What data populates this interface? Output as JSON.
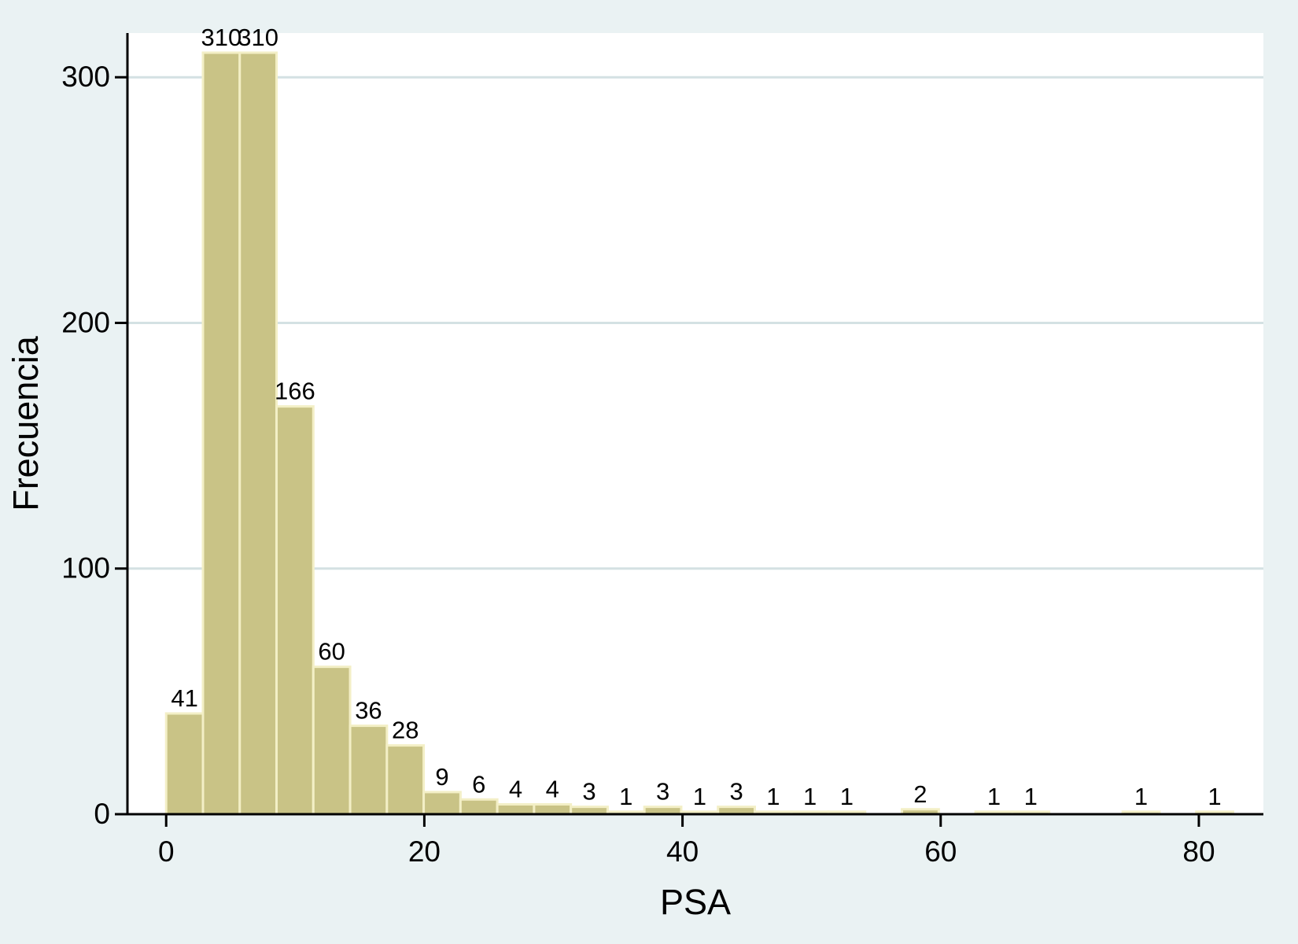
{
  "chart_data": {
    "type": "bar",
    "title": "",
    "xlabel": "PSA",
    "ylabel": "Frecuencia",
    "xlim": [
      -3,
      85
    ],
    "ylim": [
      0,
      318
    ],
    "xticks": [
      0,
      20,
      40,
      60,
      80
    ],
    "yticks": [
      0,
      100,
      200,
      300
    ],
    "grid": true,
    "bin_width": 2.85,
    "bins": [
      {
        "start": 0.0,
        "value": 41
      },
      {
        "start": 2.85,
        "value": 310
      },
      {
        "start": 5.7,
        "value": 310
      },
      {
        "start": 8.55,
        "value": 166
      },
      {
        "start": 11.4,
        "value": 60
      },
      {
        "start": 14.25,
        "value": 36
      },
      {
        "start": 17.1,
        "value": 28
      },
      {
        "start": 19.95,
        "value": 9
      },
      {
        "start": 22.8,
        "value": 6
      },
      {
        "start": 25.65,
        "value": 4
      },
      {
        "start": 28.5,
        "value": 4
      },
      {
        "start": 31.35,
        "value": 3
      },
      {
        "start": 34.2,
        "value": 1
      },
      {
        "start": 37.05,
        "value": 3
      },
      {
        "start": 39.9,
        "value": 1
      },
      {
        "start": 42.75,
        "value": 3
      },
      {
        "start": 45.6,
        "value": 1
      },
      {
        "start": 48.45,
        "value": 1
      },
      {
        "start": 51.3,
        "value": 1
      },
      {
        "start": 57.0,
        "value": 2
      },
      {
        "start": 62.7,
        "value": 1
      },
      {
        "start": 65.55,
        "value": 1
      },
      {
        "start": 74.1,
        "value": 1
      },
      {
        "start": 79.8,
        "value": 1
      }
    ],
    "colors": {
      "bar_fill": "#c9c386",
      "bar_edge": "#f3efc6",
      "plot_background": "#ffffff",
      "page_background": "#eaf2f3",
      "grid": "#d4e1e3",
      "axis": "#000000"
    }
  }
}
